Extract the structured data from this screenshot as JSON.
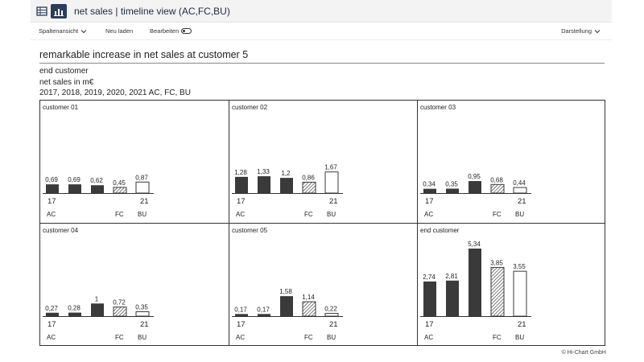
{
  "titlebar": {
    "title": "net sales | timeline view (AC,FC,BU)",
    "table_icon": "table-icon",
    "chart_icon": "bar-chart-icon"
  },
  "toolbar": {
    "column_view": "Spaltenansicht",
    "reload": "Neu laden",
    "edit": "Bearbeiten",
    "display": "Darstellung"
  },
  "report": {
    "headline": "remarkable increase in net sales at customer 5",
    "entity": "end customer",
    "measure": "net sales in m€",
    "period": "2017, 2018, 2019, 2020, 2021 AC, FC, BU"
  },
  "colors": {
    "ac": "#3a3a3a",
    "hatch": "#3a3a3a",
    "bu_fill": "#ffffff"
  },
  "chart_data": [
    {
      "type": "bar",
      "title": "customer 01",
      "values": [
        "0,69",
        "0,69",
        "0,62",
        "0,45",
        "0,87"
      ],
      "year_first": "17",
      "year_last": "21"
    },
    {
      "type": "bar",
      "title": "customer 02",
      "values": [
        "1,28",
        "1,33",
        "1,2",
        "0,86",
        "1,67"
      ],
      "year_first": "17",
      "year_last": "21"
    },
    {
      "type": "bar",
      "title": "customer 03",
      "values": [
        "0,34",
        "0,35",
        "0,95",
        "0,68",
        "0,44"
      ],
      "year_first": "17",
      "year_last": "21"
    },
    {
      "type": "bar",
      "title": "customer 04",
      "values": [
        "0,27",
        "0,28",
        "1",
        "0,72",
        "0,35"
      ],
      "year_first": "17",
      "year_last": "21"
    },
    {
      "type": "bar",
      "title": "customer 05",
      "values": [
        "0,17",
        "0,17",
        "1,58",
        "1,14",
        "0,22"
      ],
      "year_first": "17",
      "year_last": "21"
    },
    {
      "type": "bar",
      "title": "end customer",
      "values": [
        "2,74",
        "2,81",
        "5,34",
        "3,85",
        "3,55"
      ],
      "year_first": "17",
      "year_last": "21"
    }
  ],
  "scenarios": {
    "ac": "AC",
    "fc": "FC",
    "bu": "BU"
  },
  "footer": {
    "copyright": "© Hi-Chart GmbH"
  }
}
